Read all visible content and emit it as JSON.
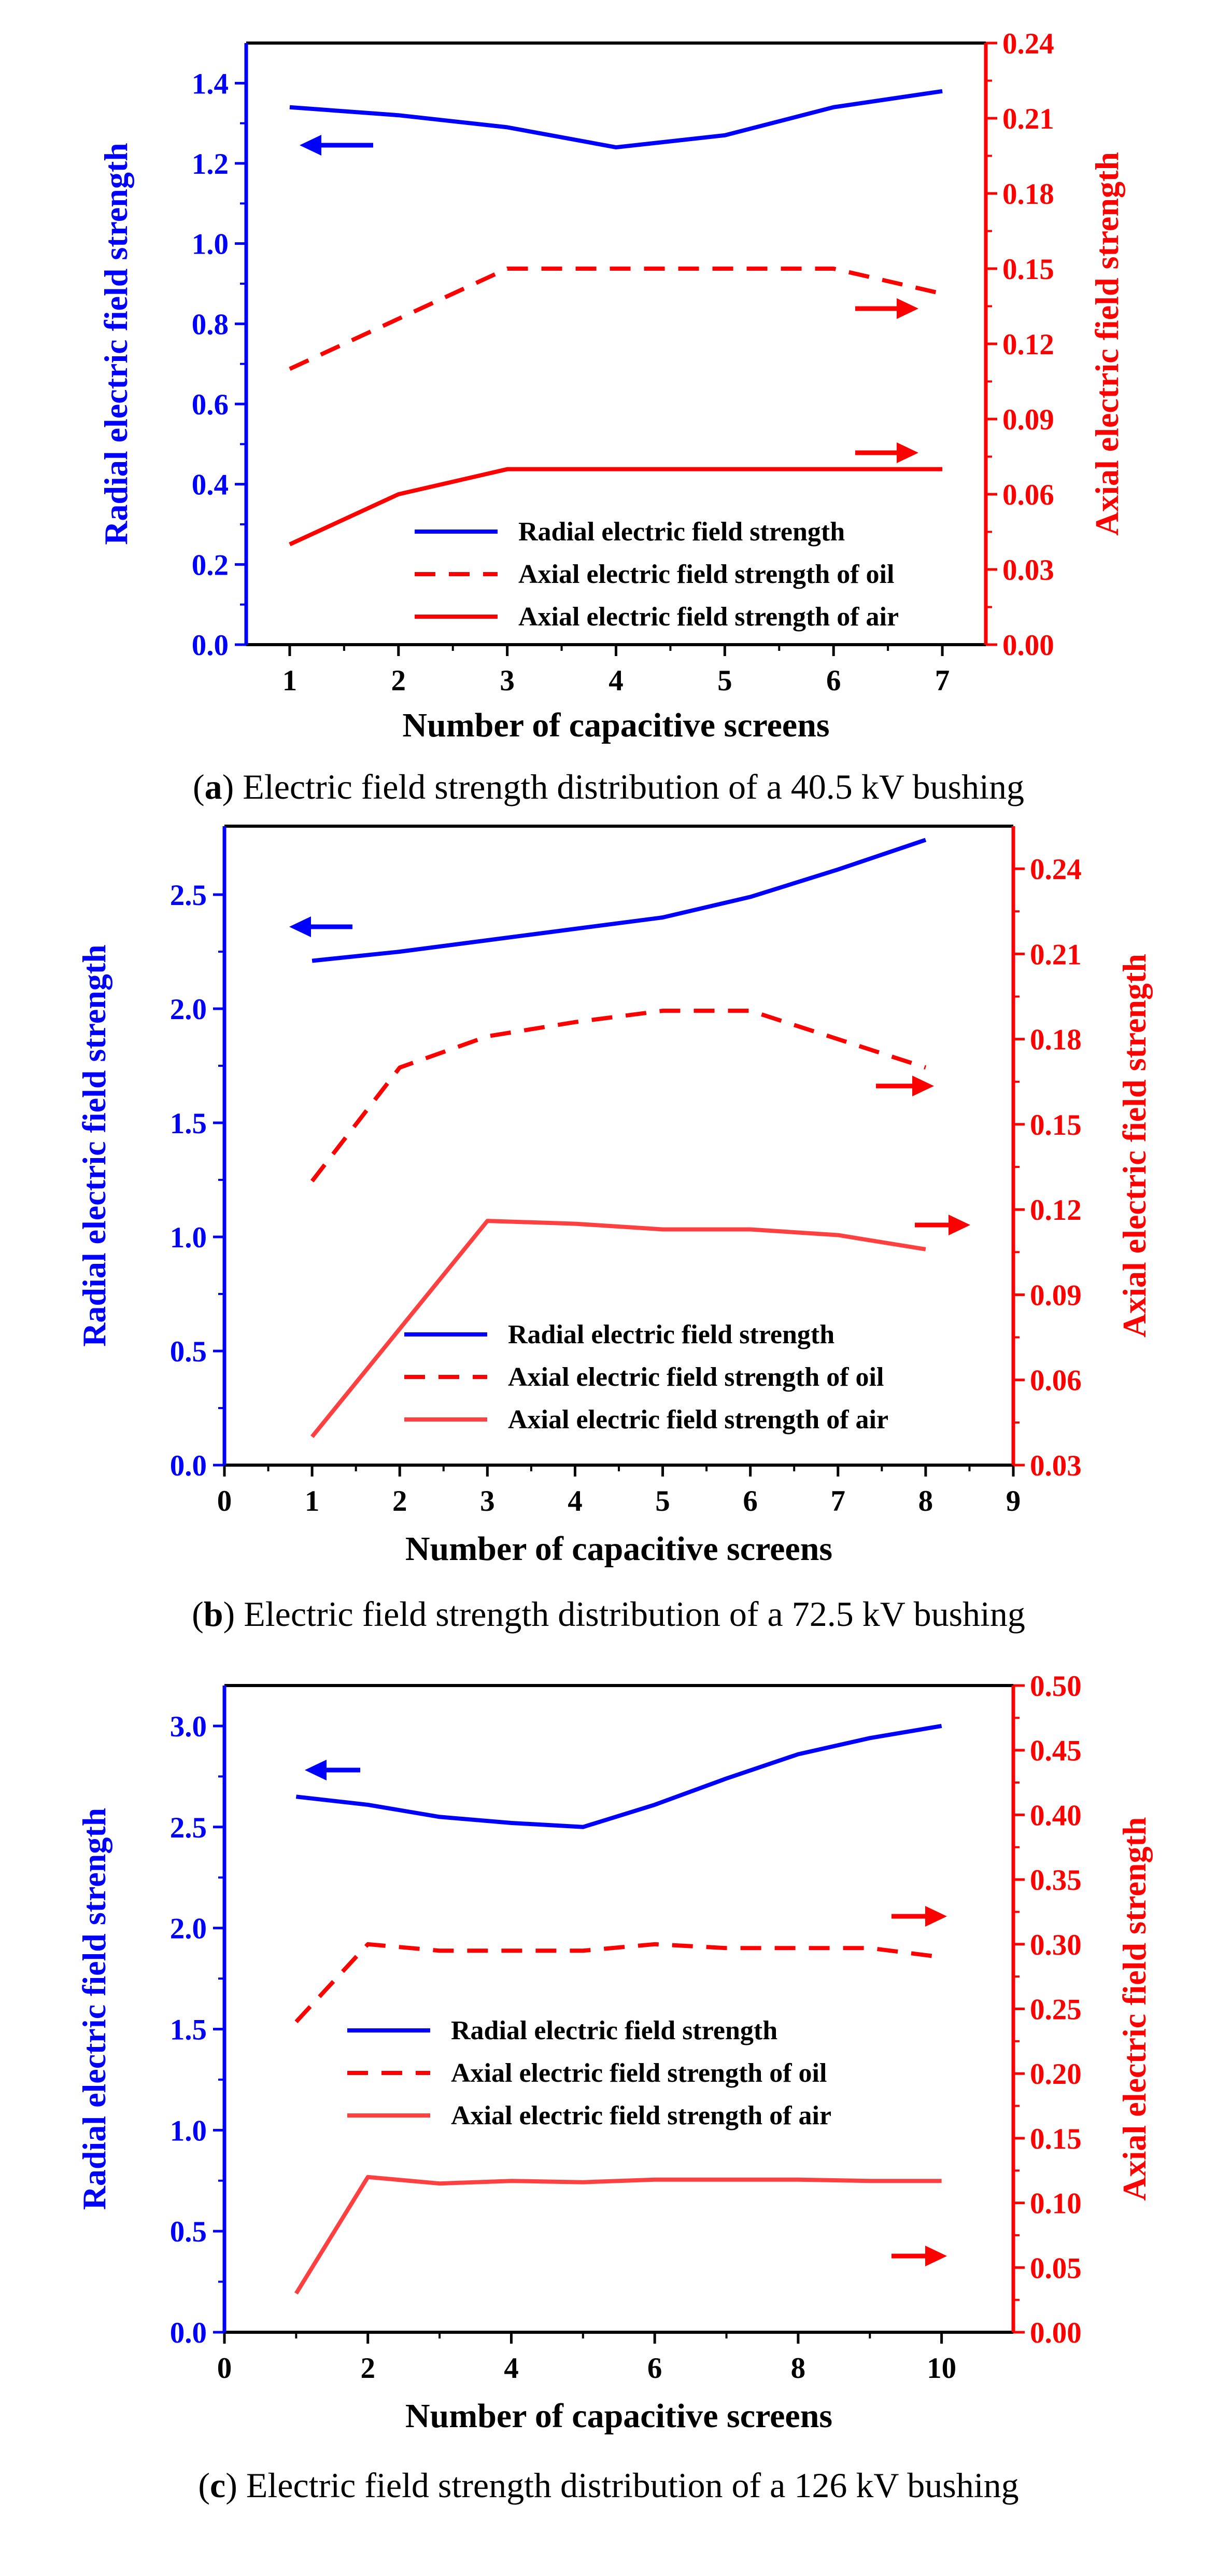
{
  "chart_data": [
    {
      "type": "line",
      "caption_letter": "a",
      "caption_text": "Electric field strength distribution of a 40.5 kV bushing",
      "xlabel": "Number of capacitive screens",
      "ylabel_left": "Radial electric field strength",
      "ylabel_right": "Axial electric field strength",
      "xlim": [
        0.6,
        7.4
      ],
      "x_ticks": [
        1,
        2,
        3,
        4,
        5,
        6,
        7
      ],
      "ylim_left": [
        0,
        1.5
      ],
      "y_ticks_left": [
        "0.0",
        "0.2",
        "0.4",
        "0.6",
        "0.8",
        "1.0",
        "1.2",
        "1.4"
      ],
      "ylim_right": [
        0,
        0.24
      ],
      "y_ticks_right": [
        "0.00",
        "0.03",
        "0.06",
        "0.09",
        "0.12",
        "0.15",
        "0.18",
        "0.21",
        "0.24"
      ],
      "legend": [
        "Radial electric field strength",
        "Axial electric field strength of oil",
        "Axial electric field strength of air"
      ],
      "series": [
        {
          "name": "Radial electric field strength",
          "axis": "left",
          "style": "solid",
          "color": "#0000ff",
          "x": [
            1,
            2,
            3,
            4,
            5,
            6,
            7
          ],
          "values": [
            1.34,
            1.32,
            1.29,
            1.24,
            1.27,
            1.34,
            1.38
          ]
        },
        {
          "name": "Axial electric field strength of oil",
          "axis": "right",
          "style": "dashed",
          "color": "#ff0000",
          "x": [
            1,
            2,
            3,
            4,
            5,
            6,
            7
          ],
          "values": [
            0.11,
            0.13,
            0.15,
            0.15,
            0.15,
            0.15,
            0.14
          ]
        },
        {
          "name": "Axial electric field strength of air",
          "axis": "right",
          "style": "solid",
          "color": "#ff0000",
          "x": [
            1,
            2,
            3,
            4,
            5,
            6,
            7
          ],
          "values": [
            0.04,
            0.06,
            0.07,
            0.07,
            0.07,
            0.07,
            0.07
          ]
        }
      ]
    },
    {
      "type": "line",
      "caption_letter": "b",
      "caption_text": "Electric field strength distribution of a 72.5 kV bushing",
      "xlabel": "Number of capacitive screens",
      "ylabel_left": "Radial electric field strength",
      "ylabel_right": "Axial electric field strength",
      "xlim": [
        0,
        9
      ],
      "x_ticks": [
        0,
        1,
        2,
        3,
        4,
        5,
        6,
        7,
        8,
        9
      ],
      "ylim_left": [
        0,
        2.8
      ],
      "y_ticks_left": [
        "0.0",
        "0.5",
        "1.0",
        "1.5",
        "2.0",
        "2.5"
      ],
      "ylim_right": [
        0.03,
        0.255
      ],
      "y_ticks_right": [
        "0.03",
        "0.06",
        "0.09",
        "0.12",
        "0.15",
        "0.18",
        "0.21",
        "0.24"
      ],
      "legend": [
        "Radial electric field strength",
        "Axial electric field strength of oil",
        "Axial electric field strength of air"
      ],
      "series": [
        {
          "name": "Radial electric field strength",
          "axis": "left",
          "style": "solid",
          "color": "#0000ff",
          "x": [
            1,
            2,
            3,
            4,
            5,
            6,
            7,
            8
          ],
          "values": [
            2.21,
            2.25,
            2.3,
            2.35,
            2.4,
            2.49,
            2.61,
            2.74
          ]
        },
        {
          "name": "Axial electric field strength of oil",
          "axis": "right",
          "style": "dashed",
          "color": "#ff0000",
          "x": [
            1,
            2,
            3,
            4,
            5,
            6,
            7,
            8
          ],
          "values": [
            0.13,
            0.17,
            0.181,
            0.186,
            0.19,
            0.19,
            0.18,
            0.17
          ]
        },
        {
          "name": "Axial electric field strength of air",
          "axis": "right",
          "style": "solid",
          "color": "#ff4040",
          "x": [
            1,
            2,
            3,
            4,
            5,
            6,
            7,
            8
          ],
          "values": [
            0.04,
            0.078,
            0.116,
            0.115,
            0.113,
            0.113,
            0.111,
            0.106
          ]
        }
      ]
    },
    {
      "type": "line",
      "caption_letter": "c",
      "caption_text": "Electric field strength distribution of a 126 kV bushing",
      "xlabel": "Number of capacitive screens",
      "ylabel_left": "Radial electric field strength",
      "ylabel_right": "Axial electric field strength",
      "xlim": [
        0,
        11
      ],
      "x_ticks": [
        0,
        2,
        4,
        6,
        8,
        10
      ],
      "ylim_left": [
        0,
        3.2
      ],
      "y_ticks_left": [
        "0.0",
        "0.5",
        "1.0",
        "1.5",
        "2.0",
        "2.5",
        "3.0"
      ],
      "ylim_right": [
        0,
        0.5
      ],
      "y_ticks_right": [
        "0.00",
        "0.05",
        "0.10",
        "0.15",
        "0.20",
        "0.25",
        "0.30",
        "0.35",
        "0.40",
        "0.45",
        "0.50"
      ],
      "legend": [
        "Radial electric field strength",
        "Axial electric field strength of oil",
        "Axial electric field strength of air"
      ],
      "series": [
        {
          "name": "Radial electric field strength",
          "axis": "left",
          "style": "solid",
          "color": "#0000ff",
          "x": [
            1,
            2,
            3,
            4,
            5,
            6,
            7,
            8,
            9,
            10
          ],
          "values": [
            2.65,
            2.61,
            2.55,
            2.52,
            2.5,
            2.61,
            2.74,
            2.86,
            2.94,
            3.0
          ]
        },
        {
          "name": "Axial electric field strength of oil",
          "axis": "right",
          "style": "dashed",
          "color": "#ff0000",
          "x": [
            1,
            2,
            3,
            4,
            5,
            6,
            7,
            8,
            9,
            10
          ],
          "values": [
            0.24,
            0.3,
            0.295,
            0.295,
            0.295,
            0.3,
            0.297,
            0.297,
            0.297,
            0.29
          ]
        },
        {
          "name": "Axial electric field strength of air",
          "axis": "right",
          "style": "solid",
          "color": "#ff4040",
          "x": [
            1,
            2,
            3,
            4,
            5,
            6,
            7,
            8,
            9,
            10
          ],
          "values": [
            0.03,
            0.12,
            0.115,
            0.117,
            0.116,
            0.118,
            0.118,
            0.118,
            0.117,
            0.117
          ]
        }
      ]
    }
  ],
  "colors": {
    "left_axis": "#0000ff",
    "right_axis": "#ff0000",
    "frame": "#000000"
  }
}
